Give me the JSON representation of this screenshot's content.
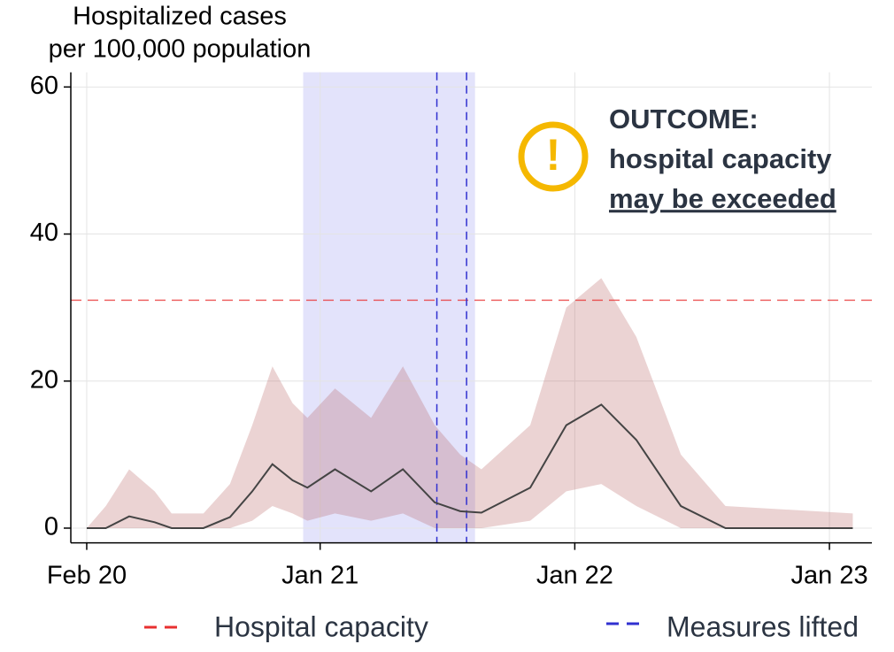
{
  "chart_data": {
    "type": "line",
    "ylabel": [
      "Hospitalized cases",
      "per 100,000 population"
    ],
    "xlim": [
      -0.75,
      37
    ],
    "ylim": [
      -2,
      62
    ],
    "xticks": [
      {
        "value": 0,
        "label": "Feb 20"
      },
      {
        "value": 11,
        "label": "Jan 21"
      },
      {
        "value": 23,
        "label": "Jan 22"
      },
      {
        "value": 35,
        "label": "Jan 23"
      }
    ],
    "yticks": [
      0,
      20,
      40,
      60
    ],
    "grid": true,
    "x": [
      0,
      0.9,
      2.0,
      3.2,
      4.0,
      5.5,
      6.75,
      7.8,
      8.75,
      9.7,
      10.4,
      11.7,
      13.4,
      14.9,
      16.4,
      17.6,
      18.6,
      20.9,
      22.6,
      24.25,
      25.9,
      28,
      30.1,
      36.1
    ],
    "series": [
      {
        "color": "#444444",
        "values": [
          0,
          0,
          1.6,
          0.8,
          0,
          0,
          1.5,
          5,
          8.7,
          6.5,
          5.5,
          8,
          5,
          8,
          3.5,
          2.3,
          2.1,
          5.5,
          14,
          16.8,
          12,
          3,
          0,
          0
        ]
      }
    ],
    "band": {
      "color": "#b05050",
      "lower": [
        0,
        0,
        0,
        0,
        0,
        0,
        0,
        1,
        3,
        2,
        1,
        2,
        1,
        2,
        0,
        0,
        0,
        1,
        5,
        6,
        3,
        0,
        0,
        0
      ],
      "upper": [
        0,
        3,
        8,
        5,
        2,
        2,
        6,
        14,
        22,
        17,
        15,
        19,
        15,
        22,
        14,
        10,
        8,
        14,
        30,
        34,
        26,
        10,
        3,
        2
      ]
    },
    "shade": {
      "range": [
        10.2,
        18.3
      ],
      "color": "#e3e3fb"
    },
    "hlines": [
      {
        "name": "Hospital capacity",
        "value": 31,
        "color": "#e83030"
      }
    ],
    "vlines": [
      {
        "name": "Measures lifted",
        "values": [
          16.5,
          17.9
        ],
        "color": "#3030d0"
      }
    ],
    "annotation": {
      "icon": "!",
      "lines": [
        "OUTCOME:",
        "hospital capacity",
        "may be exceeded"
      ],
      "color": "#2b3442",
      "icon_color": "#f5b800"
    }
  }
}
